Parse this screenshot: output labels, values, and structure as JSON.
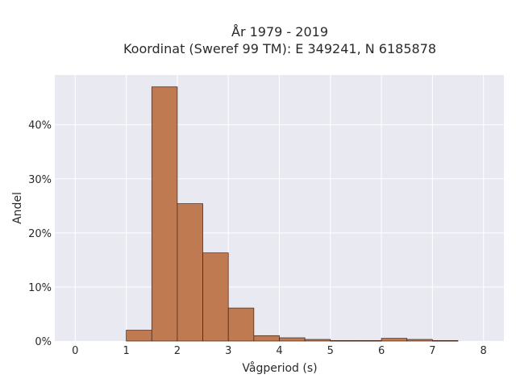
{
  "chart_data": {
    "type": "bar",
    "title_line1": "År 1979 - 2019",
    "title_line2": "Koordinat (Sweref 99 TM): E 349241, N 6185878",
    "xlabel": "Vågperiod (s)",
    "ylabel": "Andel",
    "xlim": [
      -0.4,
      8.4
    ],
    "ylim": [
      0,
      0.492
    ],
    "x_ticks": [
      0,
      1,
      2,
      3,
      4,
      5,
      6,
      7,
      8
    ],
    "y_ticks": [
      {
        "value": 0,
        "label": "0%"
      },
      {
        "value": 0.1,
        "label": "10%"
      },
      {
        "value": 0.2,
        "label": "20%"
      },
      {
        "value": 0.3,
        "label": "30%"
      },
      {
        "value": 0.4,
        "label": "40%"
      }
    ],
    "grid": true,
    "bar_color": "#bf7a52",
    "bar_edge_color": "#3a2418",
    "plot_background": "#e9e9f1",
    "bins": [
      {
        "start": 1.0,
        "end": 1.5,
        "value": 0.02
      },
      {
        "start": 1.5,
        "end": 2.0,
        "value": 0.47
      },
      {
        "start": 2.0,
        "end": 2.5,
        "value": 0.254
      },
      {
        "start": 2.5,
        "end": 3.0,
        "value": 0.163
      },
      {
        "start": 3.0,
        "end": 3.5,
        "value": 0.061
      },
      {
        "start": 3.5,
        "end": 4.0,
        "value": 0.01
      },
      {
        "start": 4.0,
        "end": 4.5,
        "value": 0.006
      },
      {
        "start": 4.5,
        "end": 5.0,
        "value": 0.003
      },
      {
        "start": 5.0,
        "end": 5.5,
        "value": 0.001
      },
      {
        "start": 5.5,
        "end": 6.0,
        "value": 0.001
      },
      {
        "start": 6.0,
        "end": 6.5,
        "value": 0.005
      },
      {
        "start": 6.5,
        "end": 7.0,
        "value": 0.003
      },
      {
        "start": 7.0,
        "end": 7.5,
        "value": 0.001
      }
    ]
  }
}
